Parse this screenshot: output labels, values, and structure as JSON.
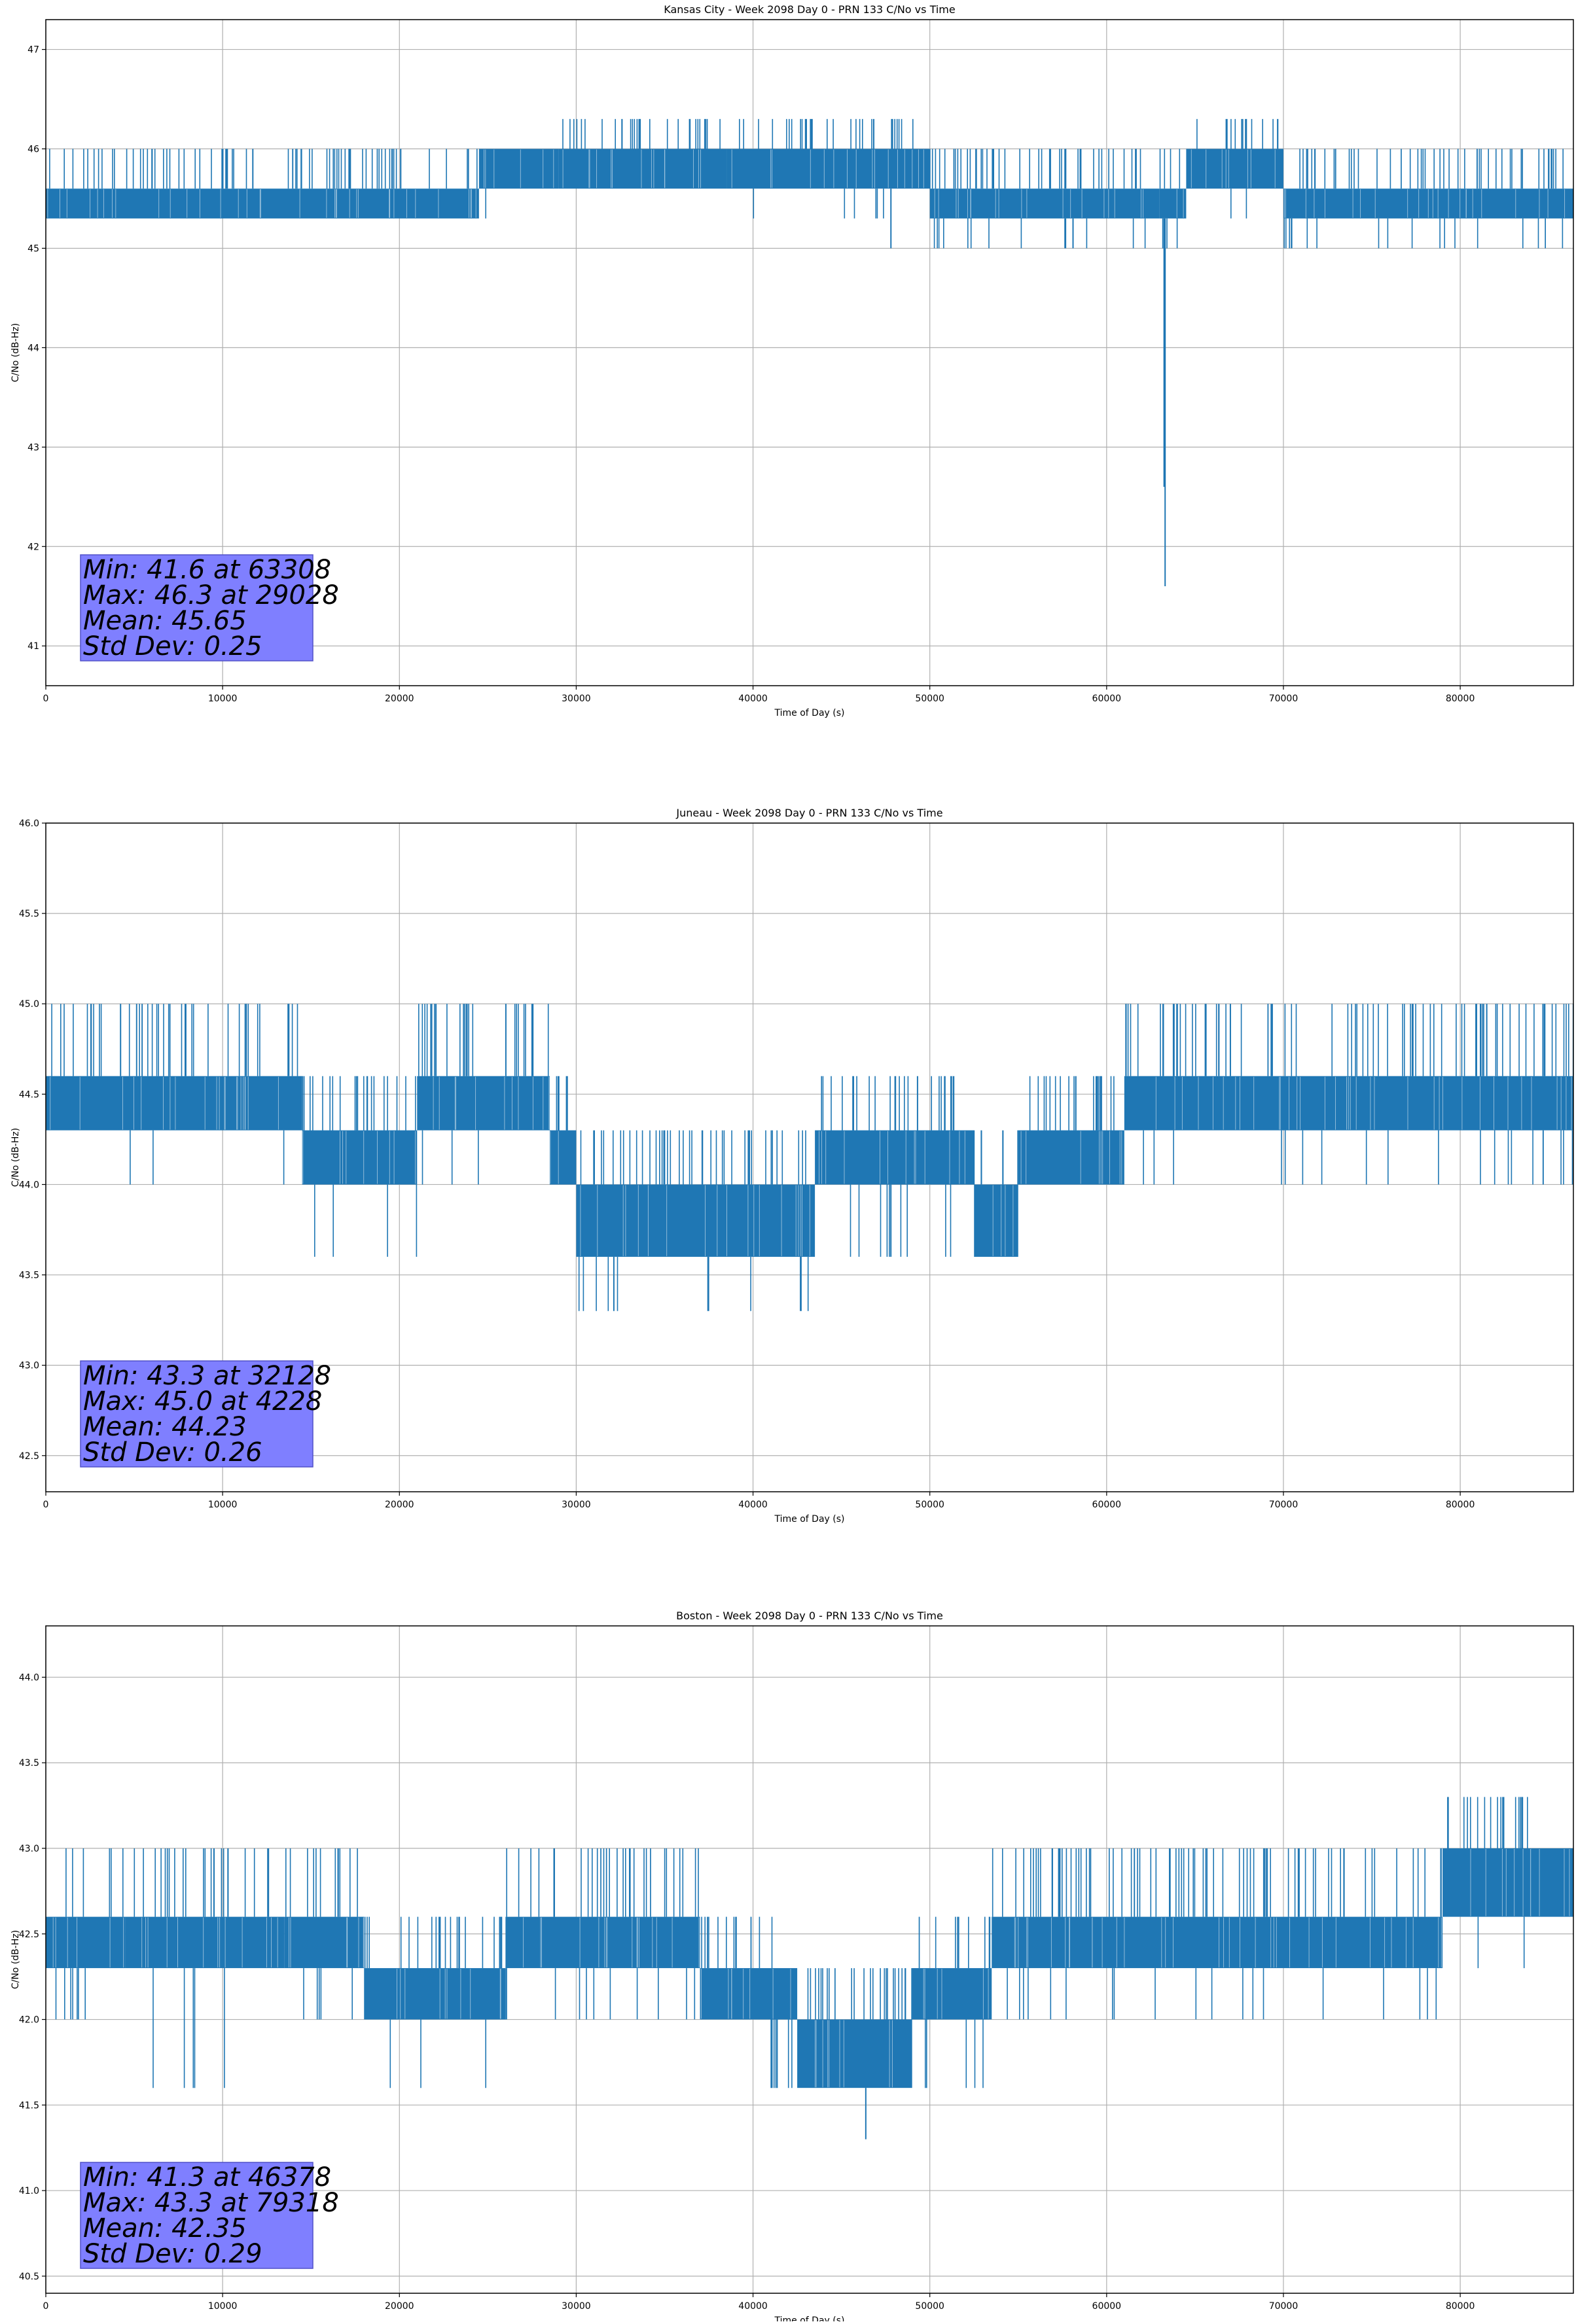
{
  "chart_data": [
    {
      "type": "line",
      "title": "Kansas City - Week 2098 Day 0 - PRN 133 C/No vs Time",
      "xlabel": "Time of Day (s)",
      "ylabel": "C/No (dB-Hz)",
      "xlim": [
        0,
        86400
      ],
      "ylim": [
        40.6,
        47.3
      ],
      "xticks": [
        0,
        10000,
        20000,
        30000,
        40000,
        50000,
        60000,
        70000,
        80000
      ],
      "yticks": [
        41,
        42,
        43,
        44,
        45,
        46,
        47
      ],
      "grid": true,
      "color": "#1f77b4",
      "segments": [
        {
          "x0": 0,
          "x1": 24500,
          "low": 45.3,
          "high": 45.6,
          "spike_up": 46.0
        },
        {
          "x0": 24500,
          "x1": 29000,
          "low": 45.6,
          "high": 46.0,
          "spike_up": 46.0,
          "spike_down": 45.3
        },
        {
          "x0": 29000,
          "x1": 38500,
          "low": 45.6,
          "high": 46.0,
          "spike_up": 46.3
        },
        {
          "x0": 38500,
          "x1": 50000,
          "low": 45.6,
          "high": 46.0,
          "spike_up": 46.3,
          "spike_down": 45.3
        },
        {
          "x0": 50000,
          "x1": 63000,
          "low": 45.3,
          "high": 45.6,
          "spike_up": 46.0,
          "spike_down": 45.0
        },
        {
          "x0": 63000,
          "x1": 64500,
          "low": 45.3,
          "high": 45.6,
          "spike_up": 46.0,
          "spike_down": 45.0
        },
        {
          "x0": 64500,
          "x1": 70000,
          "low": 45.6,
          "high": 46.0,
          "spike_up": 46.3,
          "spike_down": 45.3
        },
        {
          "x0": 70000,
          "x1": 86400,
          "low": 45.3,
          "high": 45.6,
          "spike_up": 46.0,
          "spike_down": 45.0
        }
      ],
      "outliers": [
        {
          "x": 63308,
          "y": 41.6
        },
        {
          "x": 63250,
          "y": 42.6
        },
        {
          "x": 47800,
          "y": 45.0
        },
        {
          "x": 58100,
          "y": 45.0
        }
      ],
      "stats": [
        "Min: 41.6 at 63308",
        "Max: 46.3 at 29028",
        "Mean: 45.65",
        "Std Dev: 0.25"
      ],
      "stats_bg": "#7f7fff"
    },
    {
      "type": "line",
      "title": "Juneau - Week 2098 Day 0 - PRN 133 C/No vs Time",
      "xlabel": "Time of Day (s)",
      "ylabel": "C/No (dB-Hz)",
      "xlim": [
        0,
        86400
      ],
      "ylim": [
        42.3,
        46.0
      ],
      "xticks": [
        0,
        10000,
        20000,
        30000,
        40000,
        50000,
        60000,
        70000,
        80000
      ],
      "yticks": [
        42.5,
        43.0,
        43.5,
        44.0,
        44.5,
        45.0,
        45.5,
        46.0
      ],
      "grid": true,
      "color": "#1f77b4",
      "segments": [
        {
          "x0": 0,
          "x1": 14500,
          "low": 44.3,
          "high": 44.6,
          "spike_up": 45.0,
          "spike_down": 44.0
        },
        {
          "x0": 14500,
          "x1": 21000,
          "low": 44.0,
          "high": 44.3,
          "spike_up": 44.6,
          "spike_down": 43.6
        },
        {
          "x0": 21000,
          "x1": 28500,
          "low": 44.3,
          "high": 44.6,
          "spike_up": 45.0,
          "spike_down": 44.0
        },
        {
          "x0": 28500,
          "x1": 30000,
          "low": 44.0,
          "high": 44.3,
          "spike_up": 44.6,
          "spike_down": 43.6
        },
        {
          "x0": 30000,
          "x1": 43500,
          "low": 43.6,
          "high": 44.0,
          "spike_up": 44.3,
          "spike_down": 43.3
        },
        {
          "x0": 43500,
          "x1": 52500,
          "low": 44.0,
          "high": 44.3,
          "spike_up": 44.6,
          "spike_down": 43.6
        },
        {
          "x0": 52500,
          "x1": 55000,
          "low": 43.6,
          "high": 44.0,
          "spike_up": 44.3
        },
        {
          "x0": 55000,
          "x1": 61000,
          "low": 44.0,
          "high": 44.3,
          "spike_up": 44.6
        },
        {
          "x0": 61000,
          "x1": 86400,
          "low": 44.3,
          "high": 44.6,
          "spike_up": 45.0,
          "spike_down": 44.0
        }
      ],
      "outliers": [
        {
          "x": 32128,
          "y": 43.3
        },
        {
          "x": 4228,
          "y": 45.0
        },
        {
          "x": 67000,
          "y": 45.0
        },
        {
          "x": 81500,
          "y": 45.0
        }
      ],
      "stats": [
        "Min: 43.3 at 32128",
        "Max: 45.0 at 4228",
        "Mean: 44.23",
        "Std Dev: 0.26"
      ],
      "stats_bg": "#7f7fff"
    },
    {
      "type": "line",
      "title": "Boston - Week 2098 Day 0 - PRN 133 C/No vs Time",
      "xlabel": "Time of Day (s)",
      "ylabel": "C/No (dB-Hz)",
      "xlim": [
        0,
        86400
      ],
      "ylim": [
        40.4,
        44.3
      ],
      "xticks": [
        0,
        10000,
        20000,
        30000,
        40000,
        50000,
        60000,
        70000,
        80000
      ],
      "yticks": [
        40.5,
        41.0,
        41.5,
        42.0,
        42.5,
        43.0,
        43.5,
        44.0
      ],
      "grid": true,
      "color": "#1f77b4",
      "segments": [
        {
          "x0": 0,
          "x1": 4500,
          "low": 42.3,
          "high": 42.6,
          "spike_up": 43.0,
          "spike_down": 42.0
        },
        {
          "x0": 4500,
          "x1": 13500,
          "low": 42.3,
          "high": 42.6,
          "spike_up": 43.0,
          "spike_down": 41.6
        },
        {
          "x0": 13500,
          "x1": 18000,
          "low": 42.3,
          "high": 42.6,
          "spike_up": 43.0,
          "spike_down": 42.0
        },
        {
          "x0": 18000,
          "x1": 26000,
          "low": 42.0,
          "high": 42.3,
          "spike_up": 42.6,
          "spike_down": 41.6
        },
        {
          "x0": 26000,
          "x1": 37000,
          "low": 42.3,
          "high": 42.6,
          "spike_up": 43.0,
          "spike_down": 42.0
        },
        {
          "x0": 37000,
          "x1": 42500,
          "low": 42.0,
          "high": 42.3,
          "spike_up": 42.6,
          "spike_down": 41.6
        },
        {
          "x0": 42500,
          "x1": 49000,
          "low": 41.6,
          "high": 42.0,
          "spike_up": 42.3
        },
        {
          "x0": 49000,
          "x1": 53500,
          "low": 42.0,
          "high": 42.3,
          "spike_up": 42.6,
          "spike_down": 41.6
        },
        {
          "x0": 53500,
          "x1": 79000,
          "low": 42.3,
          "high": 42.6,
          "spike_up": 43.0,
          "spike_down": 42.0
        },
        {
          "x0": 79000,
          "x1": 84000,
          "low": 42.6,
          "high": 43.0,
          "spike_up": 43.3,
          "spike_down": 42.3
        },
        {
          "x0": 84000,
          "x1": 86400,
          "low": 42.6,
          "high": 43.0,
          "spike_up": 43.0
        }
      ],
      "outliers": [
        {
          "x": 46378,
          "y": 41.3
        },
        {
          "x": 79318,
          "y": 43.3
        }
      ],
      "stats": [
        "Min: 41.3 at 46378",
        "Max: 43.3 at 79318",
        "Mean: 42.35",
        "Std Dev: 0.29"
      ],
      "stats_bg": "#7f7fff"
    }
  ]
}
